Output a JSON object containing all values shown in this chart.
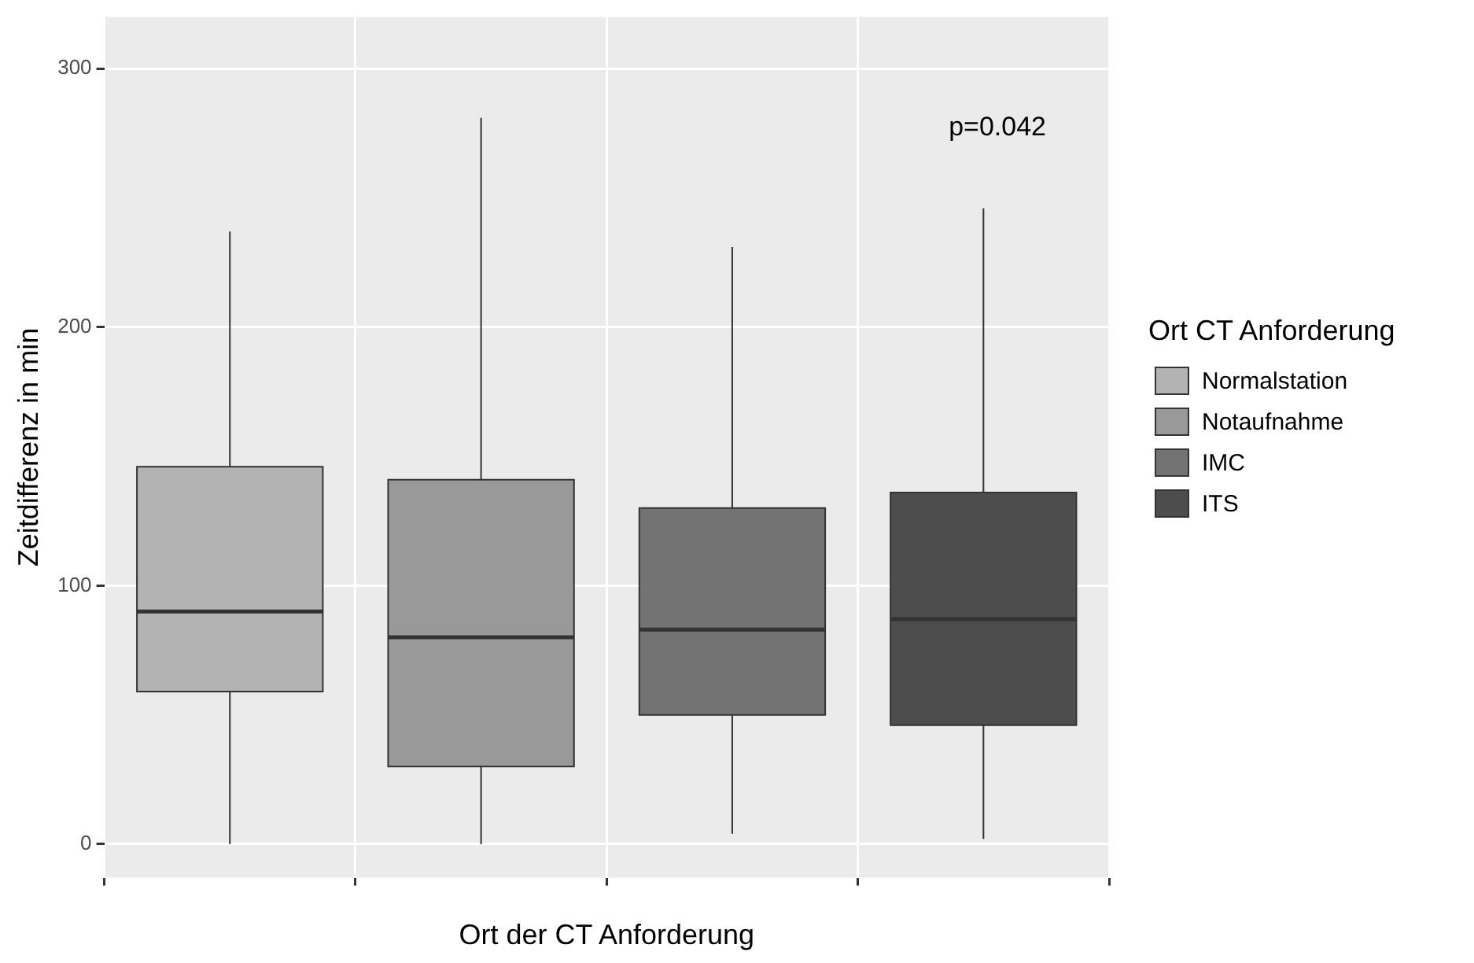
{
  "chart_data": {
    "type": "box",
    "xlabel": "Ort der CT Anforderung",
    "ylabel": "Zeitdifferenz in min",
    "legend_title": "Ort CT Anforderung",
    "categories": [
      null,
      null,
      null,
      null
    ],
    "series": [
      {
        "name": "Normalstation",
        "color": "#b3b3b3",
        "boxes": [
          {
            "low": 0,
            "q1": 59,
            "median": 90,
            "q3": 146,
            "high": 237
          },
          null,
          null,
          null
        ]
      },
      {
        "name": "Notaufnahme",
        "color": "#999999",
        "boxes": [
          null,
          {
            "low": 0,
            "q1": 30,
            "median": 80,
            "q3": 141,
            "high": 281
          },
          null,
          null
        ]
      },
      {
        "name": "IMC",
        "color": "#737373",
        "boxes": [
          null,
          null,
          {
            "low": 4,
            "q1": 50,
            "median": 83,
            "q3": 130,
            "high": 231
          },
          null
        ]
      },
      {
        "name": "ITS",
        "color": "#4d4d4d",
        "boxes": [
          null,
          null,
          null,
          {
            "low": 2,
            "q1": 46,
            "median": 87,
            "q3": 136,
            "high": 246
          }
        ]
      }
    ],
    "ylim": [
      -13,
      320
    ],
    "yticks": [
      0,
      100,
      200,
      300
    ],
    "grid": true,
    "legend": "right",
    "annotations": [
      "p=0.042"
    ]
  }
}
